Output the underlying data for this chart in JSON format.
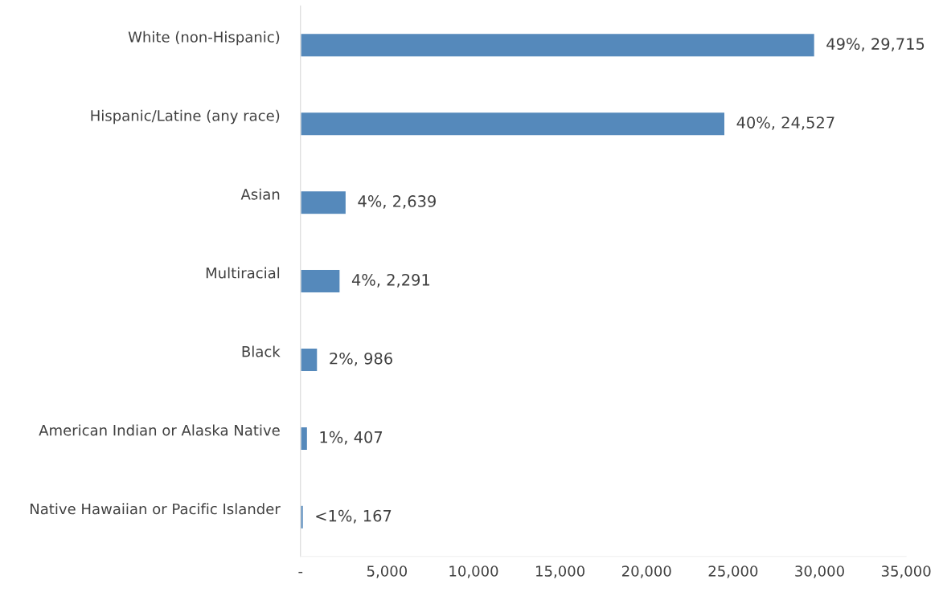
{
  "chart_data": {
    "type": "bar",
    "orientation": "horizontal",
    "categories": [
      "White (non-Hispanic)",
      "Hispanic/Latine (any race)",
      "Asian",
      "Multiracial",
      "Black",
      "American Indian or Alaska Native",
      "Native Hawaiian or Pacific Islander"
    ],
    "values": [
      29715,
      24527,
      2639,
      2291,
      986,
      407,
      167
    ],
    "value_labels": [
      "49%, 29,715",
      "40%, 24,527",
      "4%, 2,639",
      "4%, 2,291",
      "2%, 986",
      "1%, 407",
      "<1%, 167"
    ],
    "color": "#5589bb",
    "xlim": [
      0,
      35000
    ],
    "xticks": [
      {
        "value": 0,
        "label": "-"
      },
      {
        "value": 5000,
        "label": "5,000"
      },
      {
        "value": 10000,
        "label": "10,000"
      },
      {
        "value": 15000,
        "label": "15,000"
      },
      {
        "value": 20000,
        "label": "20,000"
      },
      {
        "value": 25000,
        "label": "25,000"
      },
      {
        "value": 30000,
        "label": "30,000"
      },
      {
        "value": 35000,
        "label": "35,000"
      }
    ],
    "grid": false,
    "legend": false
  }
}
